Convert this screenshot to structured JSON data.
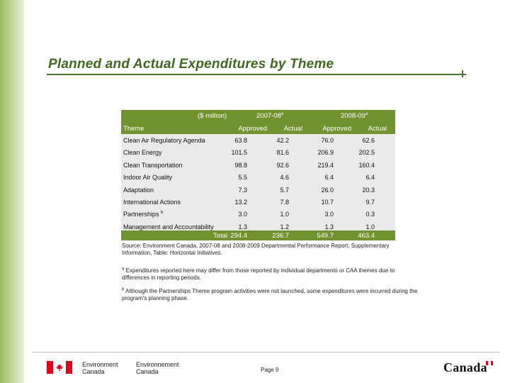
{
  "title": "Planned and Actual Expenditures by Theme",
  "table": {
    "units_label": "($ million)",
    "theme_header": "Theme",
    "periods": [
      {
        "label": "2007-08",
        "sup": "a"
      },
      {
        "label": "2008-09",
        "sup": "a"
      }
    ],
    "subheaders": [
      "Approved",
      "Actual",
      "Approved",
      "Actual"
    ],
    "rows": [
      {
        "theme": "Clean Air Regulatory Agenda",
        "sup": "",
        "values": [
          "63.8",
          "42.2",
          "76.0",
          "62.6"
        ]
      },
      {
        "theme": "Clean Energy",
        "sup": "",
        "values": [
          "101.5",
          "81.6",
          "206.9",
          "202.5"
        ]
      },
      {
        "theme": "Clean Transportation",
        "sup": "",
        "values": [
          "98.8",
          "92.6",
          "219.4",
          "160.4"
        ]
      },
      {
        "theme": "Indoor Air Quality",
        "sup": "",
        "values": [
          "5.5",
          "4.6",
          "6.4",
          "6.4"
        ]
      },
      {
        "theme": "Adaptation",
        "sup": "",
        "values": [
          "7.3",
          "5.7",
          "26.0",
          "20.3"
        ]
      },
      {
        "theme": "International Actions",
        "sup": "",
        "values": [
          "13.2",
          "7.8",
          "10.7",
          "9.7"
        ]
      },
      {
        "theme": "Partnerships",
        "sup": "b",
        "values": [
          "3.0",
          "1.0",
          "3.0",
          "0.3"
        ]
      },
      {
        "theme": "Management and Accountability",
        "sup": "",
        "values": [
          "1.3",
          "1.2",
          "1.3",
          "1.0"
        ]
      }
    ],
    "total": {
      "label": "Total",
      "values": [
        "294.4",
        "236.7",
        "549.7",
        "463.4"
      ]
    }
  },
  "source": "Source: Environment Canada, 2007-08 and 2008-2009 Departmental Performance Report, Supplementary Information, Table: Horizontal Initiatives.",
  "notes": [
    {
      "marker": "a",
      "text": "Expenditures reported here may differ from those reported by individual departments or CAA themes due to differences in reporting periods."
    },
    {
      "marker": "b",
      "text": "Although the Partnerships Theme program activities were not launched, some expenditures were incurred during the program's planning phase."
    }
  ],
  "footer": {
    "dept_en_1": "Environment",
    "dept_en_2": "Canada",
    "dept_fr_1": "Environnement",
    "dept_fr_2": "Canada",
    "page": "Page 9",
    "wordmark": "Canada"
  },
  "colors": {
    "sidebar": "#9dba62",
    "title": "#40681f",
    "table_header": "#70922f",
    "table_body": "#eaeaea",
    "flag_red": "#e0001b"
  }
}
